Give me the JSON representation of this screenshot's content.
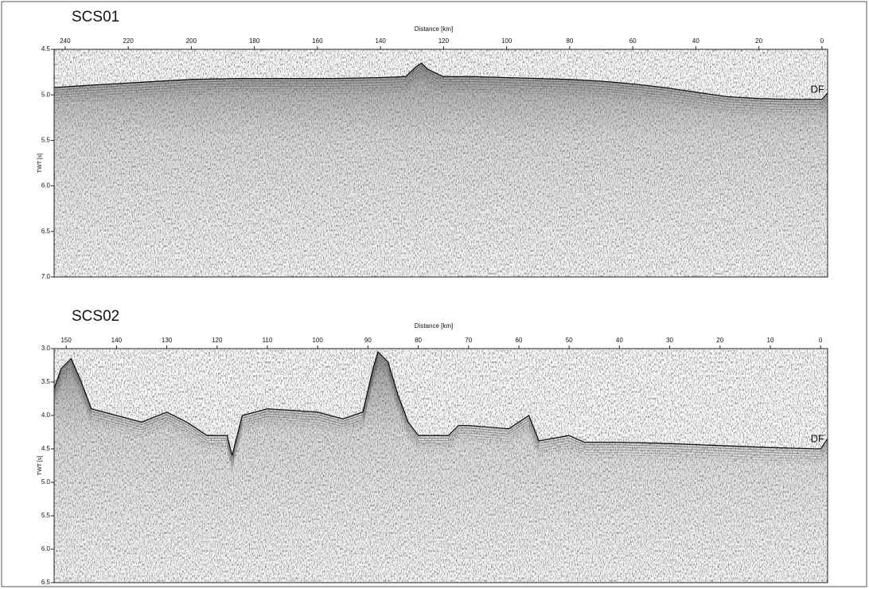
{
  "chart_data": [
    {
      "type": "seismic",
      "title": "SCS01",
      "xlabel": "Distance [km]",
      "ylabel": "TWT [s]",
      "annotation": "DF",
      "xlim": [
        243.5,
        -1.8
      ],
      "ylim": [
        4.5,
        7.0
      ],
      "xticks": [
        240,
        220,
        200,
        180,
        160,
        140,
        120,
        100,
        80,
        60,
        40,
        20,
        0
      ],
      "yticks": [
        4.5,
        {
          "value": 5,
          "label": "5.0"
        },
        5.5,
        {
          "value": 6,
          "label": "6.0"
        },
        6.5,
        {
          "value": 7,
          "label": "7.0"
        }
      ],
      "x": [
        243.5,
        235,
        225,
        215,
        200,
        185,
        170,
        155,
        140,
        132,
        129,
        127,
        125,
        120,
        110,
        100,
        90,
        80,
        70,
        60,
        50,
        40,
        30,
        20,
        10,
        0,
        -1.8
      ],
      "values": [
        4.92,
        4.9,
        4.88,
        4.86,
        4.83,
        4.82,
        4.82,
        4.82,
        4.81,
        4.8,
        4.7,
        4.65,
        4.72,
        4.8,
        4.8,
        4.81,
        4.82,
        4.83,
        4.85,
        4.88,
        4.92,
        4.97,
        5.02,
        5.04,
        5.05,
        5.05,
        4.98
      ]
    },
    {
      "type": "seismic",
      "title": "SCS02",
      "xlabel": "Distance [km]",
      "ylabel": "TWT [s]",
      "annotation": "DF",
      "xlim": [
        152.4,
        -1.4
      ],
      "ylim": [
        3.0,
        6.5
      ],
      "xticks": [
        150,
        140,
        130,
        120,
        110,
        100,
        90,
        80,
        70,
        60,
        50,
        40,
        30,
        20,
        10,
        0
      ],
      "yticks": [
        {
          "value": 3,
          "label": "3.0"
        },
        3.5,
        {
          "value": 4,
          "label": "4.0"
        },
        4.5,
        {
          "value": 5,
          "label": "5.0"
        },
        5.5,
        {
          "value": 6,
          "label": "6.0"
        },
        6.5
      ],
      "x": [
        152.4,
        151,
        149,
        147,
        145,
        140,
        135,
        130,
        126,
        122,
        118,
        117,
        115,
        110,
        100,
        95,
        91,
        89,
        88,
        86,
        84,
        82,
        80,
        74,
        72,
        70,
        62,
        58,
        56,
        50,
        47,
        40,
        30,
        20,
        10,
        0,
        -1.4
      ],
      "values": [
        3.6,
        3.3,
        3.15,
        3.5,
        3.9,
        4.0,
        4.1,
        3.95,
        4.1,
        4.3,
        4.3,
        4.6,
        4.0,
        3.9,
        3.95,
        4.05,
        3.95,
        3.3,
        3.05,
        3.2,
        3.7,
        4.1,
        4.3,
        4.3,
        4.15,
        4.15,
        4.2,
        4.0,
        4.38,
        4.3,
        4.4,
        4.4,
        4.42,
        4.45,
        4.48,
        4.5,
        4.35
      ]
    }
  ]
}
